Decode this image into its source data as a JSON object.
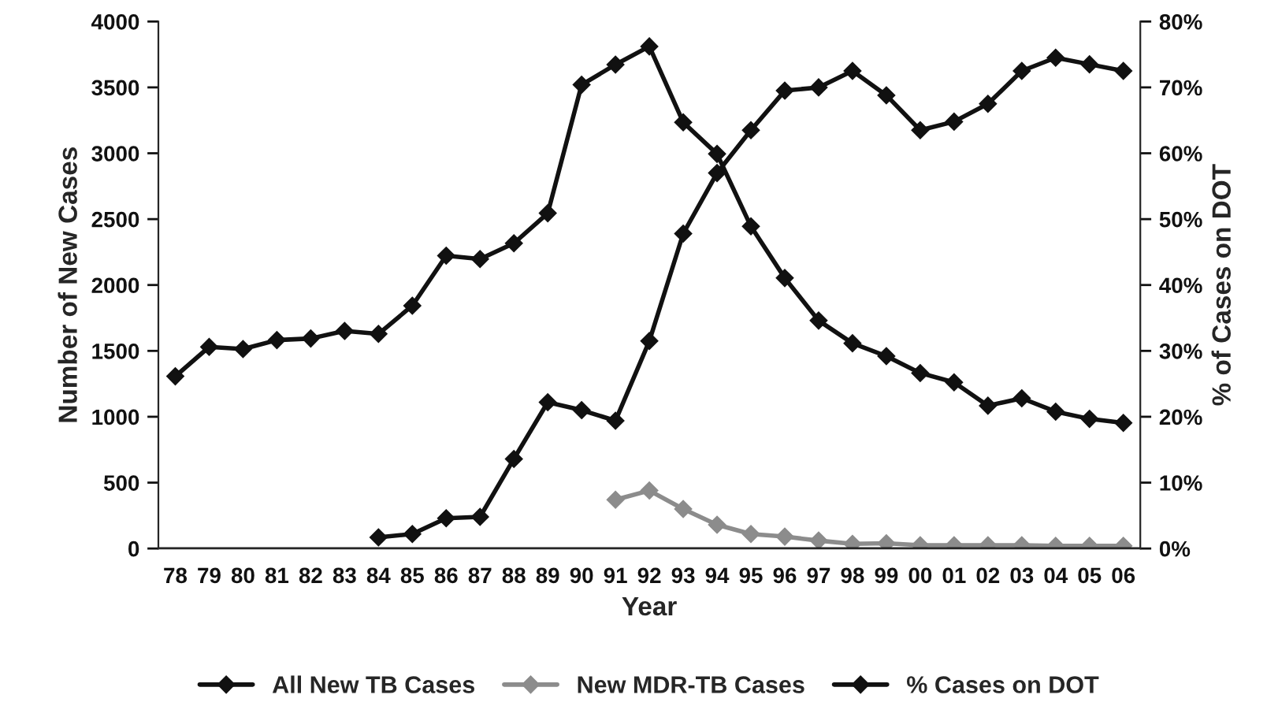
{
  "chart_data": {
    "type": "line",
    "xlabel": "Year",
    "ylabel": "Number of New Cases",
    "y2label": "% of Cases on DOT",
    "categories": [
      "78",
      "79",
      "80",
      "81",
      "82",
      "83",
      "84",
      "85",
      "86",
      "87",
      "88",
      "89",
      "90",
      "91",
      "92",
      "93",
      "94",
      "95",
      "96",
      "97",
      "98",
      "99",
      "00",
      "01",
      "02",
      "03",
      "04",
      "05",
      "06"
    ],
    "series": [
      {
        "name": "All New TB Cases",
        "color": "#111111",
        "values": [
          1307,
          1530,
          1514,
          1582,
          1594,
          1651,
          1629,
          1843,
          2223,
          2197,
          2317,
          2545,
          3520,
          3673,
          3811,
          3235,
          2995,
          2445,
          2053,
          1730,
          1558,
          1460,
          1332,
          1261,
          1084,
          1140,
          1039,
          984,
          953
        ]
      },
      {
        "name": "New MDR-TB Cases",
        "color": "#8c8c8c",
        "values": [
          null,
          null,
          null,
          null,
          null,
          null,
          null,
          null,
          null,
          null,
          null,
          null,
          null,
          370,
          440,
          300,
          180,
          110,
          90,
          60,
          35,
          40,
          25,
          25,
          25,
          25,
          20,
          20,
          20
        ]
      },
      {
        "name": "% Cases on DOT",
        "color": "#111111",
        "axis": "y2",
        "values": [
          null,
          null,
          null,
          null,
          null,
          null,
          1.7,
          2.2,
          4.6,
          4.8,
          13.6,
          22.2,
          21,
          19.4,
          31.5,
          47.8,
          57,
          63.5,
          69.5,
          70,
          72.5,
          68.8,
          63.5,
          64.8,
          67.5,
          72.5,
          74.5,
          73.5,
          72.5
        ]
      }
    ],
    "ylim": [
      0,
      4000
    ],
    "yticks": [
      0,
      500,
      1000,
      1500,
      2000,
      2500,
      3000,
      3500,
      4000
    ],
    "y2lim": [
      0,
      80
    ],
    "y2ticks": [
      {
        "value": 0,
        "label": "0%"
      },
      {
        "value": 10,
        "label": "10%"
      },
      {
        "value": 20,
        "label": "20%"
      },
      {
        "value": 30,
        "label": "30%"
      },
      {
        "value": 40,
        "label": "40%"
      },
      {
        "value": 50,
        "label": "50%"
      },
      {
        "value": 60,
        "label": "60%"
      },
      {
        "value": 70,
        "label": "70%"
      },
      {
        "value": 80,
        "label": "80%"
      }
    ],
    "legend": "bottom",
    "marker": "diamond",
    "line_style": "solid",
    "grid": false
  }
}
